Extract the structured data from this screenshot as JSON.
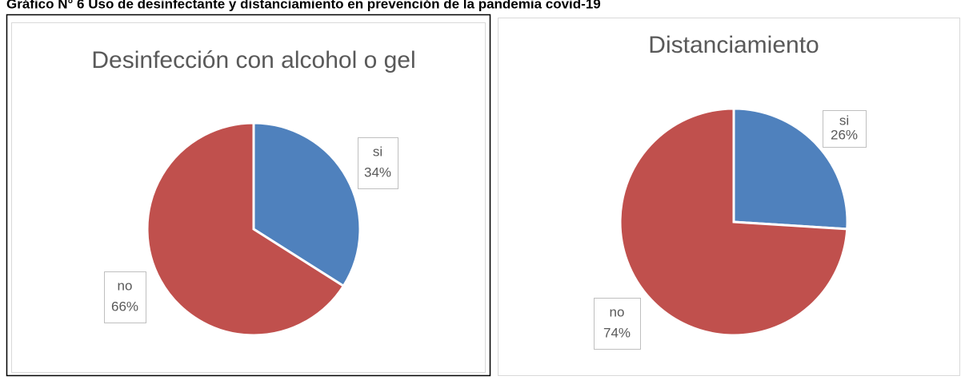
{
  "heading": "Gráfico N° 6 Uso de desinfectante y distanciamiento en prevención de la pandemia covid-19",
  "chart_data": [
    {
      "type": "pie",
      "title": "Desinfección con alcohol o gel",
      "categories": [
        "si",
        "no"
      ],
      "values": [
        34,
        66
      ],
      "value_labels": [
        "34%",
        "66%"
      ],
      "colors": [
        "#4f81bd",
        "#c0504d"
      ]
    },
    {
      "type": "pie",
      "title": "Distanciamiento",
      "categories": [
        "si",
        "no"
      ],
      "values": [
        26,
        74
      ],
      "value_labels": [
        "26%",
        "74%"
      ],
      "colors": [
        "#4f81bd",
        "#c0504d"
      ]
    }
  ]
}
